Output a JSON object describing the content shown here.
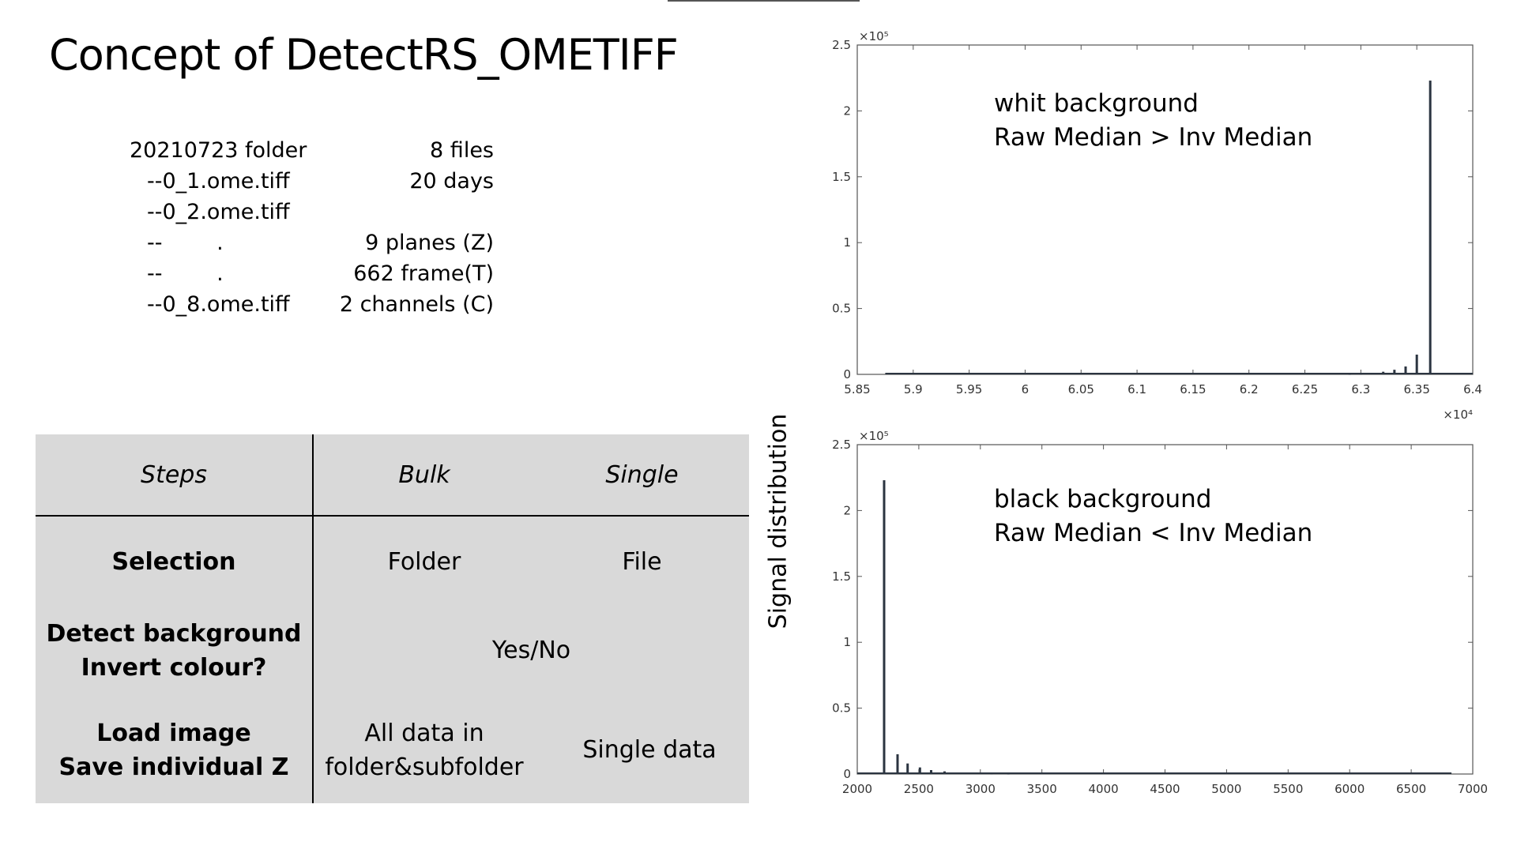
{
  "title": "Concept of DetectRS_OMETIFF",
  "file_info": {
    "left": [
      "20210723 folder",
      "--0_1.ome.tiff",
      "--0_2.ome.tiff",
      "--        .",
      "--        .",
      "--0_8.ome.tiff"
    ],
    "right": [
      "8 files",
      "20 days",
      "",
      "9 planes (Z)",
      "662 frame(T)",
      "2 channels (C)"
    ]
  },
  "table": {
    "headers": {
      "steps": "Steps",
      "bulk": "Bulk",
      "single": "Single"
    },
    "selection": {
      "label": "Selection",
      "bulk": "Folder",
      "single": "File"
    },
    "detect": {
      "label1": "Detect background",
      "label2": "Invert colour?",
      "value": "Yes/No"
    },
    "load": {
      "label1": "Load image",
      "label2": "Save individual Z",
      "bulk1": "All data in",
      "bulk2": "folder&subfolder",
      "single": "Single data"
    }
  },
  "shared_ylabel": "Signal distribution",
  "top_annotation": {
    "line1": "whit background",
    "line2": "Raw Median > Inv Median"
  },
  "bottom_annotation": {
    "line1": "black background",
    "line2": "Raw Median < Inv Median"
  },
  "colors": {
    "table_bg": "#d9d9d9",
    "bars": "#2b3440",
    "axis": "#555555"
  },
  "chart_data": [
    {
      "type": "bar",
      "title": "",
      "xlabel": "",
      "ylabel": "Signal distribution",
      "xlim": [
        58500,
        64000
      ],
      "ylim": [
        0,
        250000
      ],
      "x_multiplier": "×10⁴",
      "y_multiplier": "×10⁵",
      "x_ticks": [
        "5.85",
        "5.9",
        "5.95",
        "6",
        "6.05",
        "6.1",
        "6.15",
        "6.2",
        "6.25",
        "6.3",
        "6.35",
        "6.4"
      ],
      "y_ticks": [
        "0",
        "0.5",
        "1",
        "1.5",
        "2",
        "2.5"
      ],
      "x": [
        62900,
        63000,
        63100,
        63200,
        63300,
        63400,
        63500,
        63620
      ],
      "values": [
        300,
        500,
        1000,
        2000,
        3500,
        6000,
        15000,
        223000
      ],
      "baseline_from": 58750
    },
    {
      "type": "bar",
      "title": "",
      "xlabel": "",
      "ylabel": "Signal distribution",
      "xlim": [
        1500,
        7000
      ],
      "ylim": [
        0,
        250000
      ],
      "y_multiplier": "×10⁵",
      "x_ticks": [
        "2000",
        "2500",
        "3000",
        "3500",
        "4000",
        "4500",
        "5000",
        "5500",
        "6000",
        "6500",
        "7000"
      ],
      "y_ticks": [
        "0",
        "0.5",
        "1",
        "1.5",
        "2",
        "2.5"
      ],
      "x": [
        1740,
        1860,
        1950,
        2060,
        2160,
        2280,
        2420,
        2560,
        2700,
        2850
      ],
      "values": [
        223000,
        15000,
        8000,
        5000,
        3000,
        2000,
        1200,
        800,
        500,
        300
      ],
      "baseline_to": 6810
    }
  ]
}
